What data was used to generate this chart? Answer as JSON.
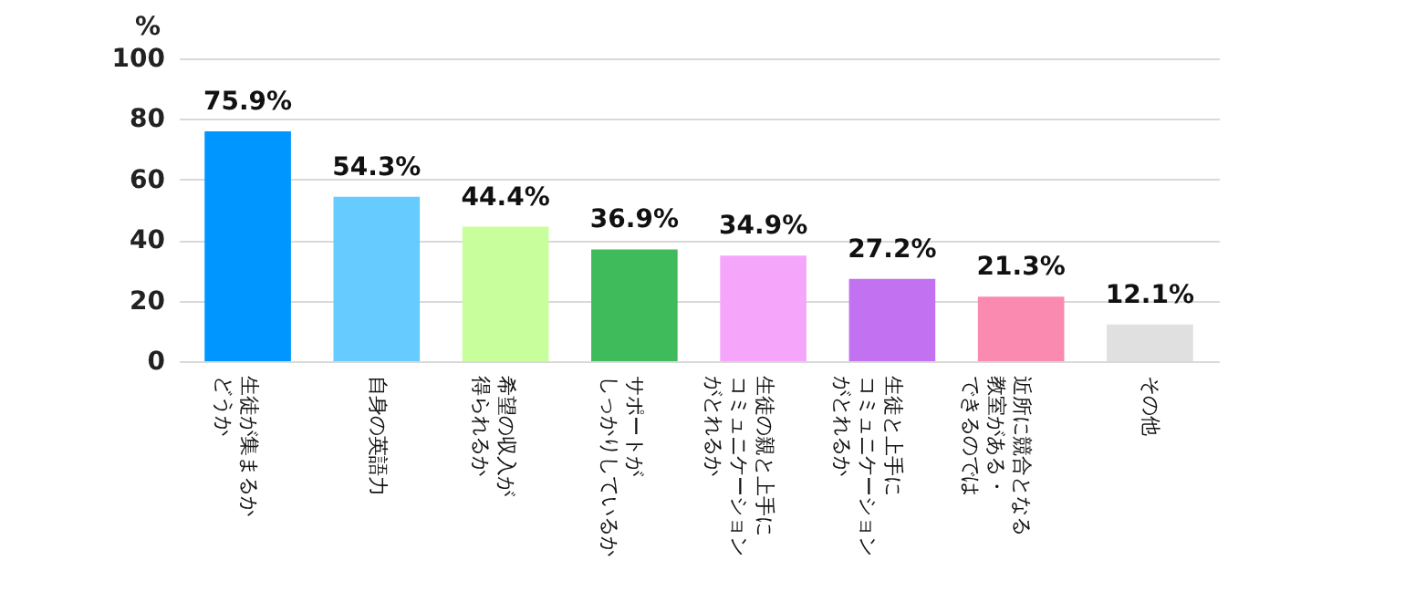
{
  "chart_data": {
    "type": "bar",
    "ylabel": "%",
    "categories": [
      [
        "生徒が集まるか",
        "どうか"
      ],
      [
        "自身の英語力"
      ],
      [
        "希望の収入が",
        "得られるか"
      ],
      [
        "サポートが",
        "しっかりしているか"
      ],
      [
        "生徒の親と上手に",
        "コミュニケーション",
        "がとれるか"
      ],
      [
        "生徒と上手に",
        "コミュニケーション",
        "がとれるか"
      ],
      [
        "近所に競合となる",
        "教室がある・",
        "できるのでは"
      ],
      [
        "その他"
      ]
    ],
    "values": [
      75.9,
      54.3,
      44.4,
      36.9,
      34.9,
      27.2,
      21.3,
      12.1
    ],
    "value_labels": [
      "75.9%",
      "54.3%",
      "44.4%",
      "36.9%",
      "34.9%",
      "27.2%",
      "21.3%",
      "12.1%"
    ],
    "colors": [
      "#0096ff",
      "#66ccff",
      "#c8ff9c",
      "#3fbb5c",
      "#f5a6fb",
      "#c271f0",
      "#fb8ab0",
      "#e0e0e0"
    ],
    "ylim": [
      0,
      100
    ],
    "yticks": [
      0,
      20,
      40,
      60,
      80,
      100
    ],
    "grid": "y"
  }
}
